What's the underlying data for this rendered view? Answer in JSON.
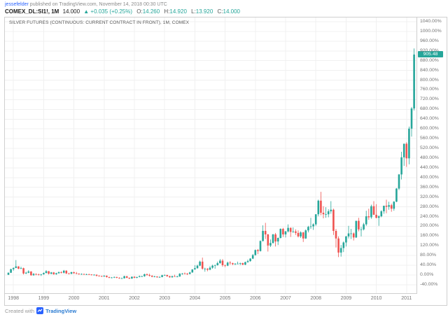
{
  "header": {
    "author": "jessefelder",
    "published": " published on TradingView.com, November 14, 2018 00:30 UTC",
    "symbol_line": {
      "symbol": "COMEX_DL:SI1!, 1M",
      "last": "14.000",
      "change": "▲ +0.035 (+0.25%)",
      "o_label": "O:",
      "o": "14.260",
      "h_label": "H:",
      "h": "14.920",
      "l_label": "L:",
      "l": "13.920",
      "c_label": "C:",
      "c": "14.000"
    }
  },
  "chart": {
    "title": "SILVER FUTURES (CONTINUOUS: CURRENT CONTRACT IN FRONT), 1M, COMEX",
    "price_tag": "905.48"
  },
  "footer": {
    "created_with": "Created with",
    "brand": "TradingView"
  },
  "chart_data": {
    "type": "candlestick",
    "symbol": "COMEX_DL:SI1!",
    "timeframe": "1M",
    "scale": "percent",
    "title": "SILVER FUTURES (CONTINUOUS: CURRENT CONTRACT IN FRONT), 1M, COMEX",
    "baseline_price": 4.835,
    "start": "1997-11",
    "y_axis": {
      "min_pct": -40,
      "max_pct": 1040,
      "step_pct": 40,
      "suffix": "%"
    },
    "x_ticks": [
      "1998",
      "1999",
      "2000",
      "2001",
      "2002",
      "2003",
      "2004",
      "2005",
      "2006",
      "2007",
      "2008",
      "2009",
      "2010",
      "2011"
    ],
    "colors": {
      "up": "#26a69a",
      "down": "#ef5350",
      "grid": "#f0f0f0"
    },
    "last_pct": 905.48,
    "candles_usd_ohlc": [
      [
        4.9,
        5.35,
        4.85,
        5.3
      ],
      [
        5.3,
        6.1,
        5.25,
        6.0
      ],
      [
        6.0,
        6.35,
        5.7,
        6.25
      ],
      [
        6.25,
        7.81,
        6.2,
        6.55
      ],
      [
        6.55,
        6.6,
        6.0,
        6.1
      ],
      [
        6.1,
        6.5,
        6.0,
        6.2
      ],
      [
        6.2,
        6.3,
        4.95,
        5.15
      ],
      [
        5.15,
        5.5,
        5.05,
        5.3
      ],
      [
        5.3,
        5.8,
        5.2,
        5.55
      ],
      [
        5.55,
        5.6,
        4.7,
        4.8
      ],
      [
        4.8,
        5.25,
        4.7,
        5.05
      ],
      [
        5.05,
        5.15,
        4.8,
        5.0
      ],
      [
        5.0,
        5.1,
        4.75,
        4.9
      ],
      [
        4.9,
        5.05,
        4.65,
        5.0
      ],
      [
        5.0,
        5.35,
        4.9,
        5.25
      ],
      [
        5.25,
        5.8,
        5.15,
        5.6
      ],
      [
        5.6,
        5.65,
        4.95,
        5.1
      ],
      [
        5.1,
        5.45,
        5.0,
        5.35
      ],
      [
        5.35,
        5.45,
        4.9,
        5.0
      ],
      [
        5.0,
        5.3,
        4.9,
        5.2
      ],
      [
        5.2,
        5.55,
        5.1,
        5.4
      ],
      [
        5.4,
        5.6,
        5.15,
        5.3
      ],
      [
        5.3,
        5.85,
        5.15,
        5.7
      ],
      [
        5.7,
        5.8,
        5.05,
        5.15
      ],
      [
        5.15,
        5.3,
        5.0,
        5.1
      ],
      [
        5.1,
        5.5,
        5.0,
        5.4
      ],
      [
        5.4,
        5.5,
        5.1,
        5.2
      ],
      [
        5.2,
        5.45,
        5.0,
        5.1
      ],
      [
        5.1,
        5.2,
        4.9,
        5.0
      ],
      [
        5.0,
        5.15,
        4.9,
        5.05
      ],
      [
        5.05,
        5.1,
        4.85,
        4.95
      ],
      [
        4.95,
        5.1,
        4.85,
        5.0
      ],
      [
        5.0,
        5.1,
        4.85,
        4.95
      ],
      [
        4.95,
        5.0,
        4.75,
        4.85
      ],
      [
        4.85,
        5.0,
        4.75,
        4.9
      ],
      [
        4.9,
        4.95,
        4.55,
        4.7
      ],
      [
        4.7,
        4.8,
        4.55,
        4.65
      ],
      [
        4.65,
        4.7,
        4.45,
        4.55
      ],
      [
        4.55,
        4.8,
        4.5,
        4.7
      ],
      [
        4.7,
        4.75,
        4.35,
        4.45
      ],
      [
        4.45,
        4.5,
        4.2,
        4.3
      ],
      [
        4.3,
        4.45,
        4.2,
        4.35
      ],
      [
        4.35,
        4.55,
        4.25,
        4.45
      ],
      [
        4.45,
        4.5,
        4.2,
        4.3
      ],
      [
        4.3,
        4.4,
        4.1,
        4.2
      ],
      [
        4.2,
        4.35,
        4.1,
        4.2
      ],
      [
        4.2,
        4.7,
        4.15,
        4.6
      ],
      [
        4.6,
        4.65,
        4.2,
        4.3
      ],
      [
        4.3,
        4.35,
        4.03,
        4.15
      ],
      [
        4.15,
        4.55,
        4.1,
        4.5
      ],
      [
        4.5,
        4.6,
        4.2,
        4.3
      ],
      [
        4.3,
        4.5,
        4.2,
        4.45
      ],
      [
        4.45,
        4.75,
        4.4,
        4.6
      ],
      [
        4.6,
        4.7,
        4.45,
        4.6
      ],
      [
        4.6,
        5.1,
        4.5,
        5.0
      ],
      [
        5.0,
        5.15,
        4.7,
        4.85
      ],
      [
        4.85,
        5.1,
        4.55,
        4.7
      ],
      [
        4.7,
        4.8,
        4.4,
        4.5
      ],
      [
        4.5,
        4.7,
        4.4,
        4.55
      ],
      [
        4.55,
        4.6,
        4.3,
        4.4
      ],
      [
        4.4,
        4.6,
        4.3,
        4.45
      ],
      [
        4.45,
        4.9,
        4.4,
        4.8
      ],
      [
        4.8,
        4.95,
        4.7,
        4.85
      ],
      [
        4.85,
        4.9,
        4.5,
        4.6
      ],
      [
        4.6,
        4.7,
        4.3,
        4.4
      ],
      [
        4.4,
        4.7,
        4.3,
        4.6
      ],
      [
        4.6,
        4.9,
        4.5,
        4.5
      ],
      [
        4.5,
        4.7,
        4.4,
        4.55
      ],
      [
        4.55,
        5.2,
        4.5,
        5.1
      ],
      [
        5.1,
        5.25,
        4.9,
        5.15
      ],
      [
        5.15,
        5.35,
        5.0,
        5.1
      ],
      [
        5.1,
        5.25,
        4.85,
        5.05
      ],
      [
        5.05,
        5.5,
        5.0,
        5.35
      ],
      [
        5.35,
        6.0,
        5.3,
        5.95
      ],
      [
        5.95,
        6.8,
        5.9,
        6.2
      ],
      [
        6.2,
        6.9,
        6.1,
        6.7
      ],
      [
        6.7,
        7.7,
        6.6,
        7.5
      ],
      [
        7.5,
        8.3,
        5.9,
        6.1
      ],
      [
        6.1,
        6.3,
        5.5,
        6.1
      ],
      [
        6.1,
        6.2,
        5.6,
        5.9
      ],
      [
        5.9,
        6.6,
        5.8,
        6.3
      ],
      [
        6.3,
        6.9,
        6.1,
        6.7
      ],
      [
        6.7,
        6.9,
        6.1,
        6.8
      ],
      [
        6.8,
        7.5,
        6.7,
        7.2
      ],
      [
        7.2,
        8.0,
        7.1,
        7.7
      ],
      [
        7.7,
        8.0,
        6.5,
        6.8
      ],
      [
        6.8,
        6.9,
        6.4,
        6.7
      ],
      [
        6.7,
        7.5,
        6.6,
        7.3
      ],
      [
        7.3,
        7.6,
        6.9,
        7.2
      ],
      [
        7.2,
        7.3,
        6.8,
        7.0
      ],
      [
        7.0,
        7.2,
        6.8,
        7.1
      ],
      [
        7.1,
        7.5,
        7.0,
        7.1
      ],
      [
        7.1,
        7.3,
        6.8,
        7.2
      ],
      [
        7.2,
        7.3,
        6.8,
        6.9
      ],
      [
        6.9,
        7.5,
        6.8,
        7.4
      ],
      [
        7.4,
        7.9,
        7.3,
        7.6
      ],
      [
        7.6,
        8.2,
        7.5,
        8.1
      ],
      [
        8.1,
        9.0,
        8.0,
        8.8
      ],
      [
        8.8,
        9.9,
        8.7,
        9.8
      ],
      [
        9.8,
        10.0,
        9.0,
        9.6
      ],
      [
        9.6,
        11.7,
        9.5,
        11.6
      ],
      [
        11.6,
        14.7,
        11.5,
        13.6
      ],
      [
        13.6,
        15.2,
        12.0,
        12.9
      ],
      [
        12.9,
        13.0,
        9.5,
        10.7
      ],
      [
        10.7,
        11.9,
        10.4,
        11.2
      ],
      [
        11.2,
        13.0,
        11.1,
        12.9
      ],
      [
        12.9,
        13.2,
        10.5,
        11.5
      ],
      [
        11.5,
        12.3,
        10.8,
        12.2
      ],
      [
        12.2,
        14.1,
        12.1,
        14.0
      ],
      [
        14.0,
        14.2,
        12.4,
        12.9
      ],
      [
        12.9,
        13.6,
        12.3,
        13.5
      ],
      [
        13.5,
        14.9,
        13.3,
        14.2
      ],
      [
        14.2,
        14.3,
        12.4,
        13.4
      ],
      [
        13.4,
        14.3,
        13.2,
        13.5
      ],
      [
        13.5,
        13.9,
        12.8,
        13.2
      ],
      [
        13.2,
        13.7,
        12.3,
        12.5
      ],
      [
        12.5,
        13.5,
        12.2,
        13.3
      ],
      [
        13.3,
        13.4,
        11.4,
        12.1
      ],
      [
        12.1,
        13.9,
        12.0,
        13.7
      ],
      [
        13.7,
        14.6,
        13.3,
        14.4
      ],
      [
        14.4,
        16.2,
        14.0,
        14.5
      ],
      [
        14.5,
        15.1,
        13.8,
        14.9
      ],
      [
        14.9,
        16.9,
        14.6,
        16.9
      ],
      [
        16.9,
        19.8,
        16.5,
        19.6
      ],
      [
        19.6,
        21.35,
        16.7,
        17.2
      ],
      [
        17.2,
        18.5,
        16.1,
        16.9
      ],
      [
        16.9,
        18.3,
        16.2,
        16.9
      ],
      [
        16.9,
        17.9,
        16.3,
        17.5
      ],
      [
        17.5,
        19.5,
        17.0,
        17.8
      ],
      [
        17.8,
        18.0,
        12.8,
        13.6
      ],
      [
        13.6,
        14.0,
        10.3,
        12.1
      ],
      [
        12.1,
        12.5,
        8.4,
        9.3
      ],
      [
        9.3,
        10.8,
        8.5,
        10.2
      ],
      [
        10.2,
        11.5,
        9.4,
        11.3
      ],
      [
        11.3,
        12.6,
        10.5,
        12.5
      ],
      [
        12.5,
        14.6,
        12.1,
        13.1
      ],
      [
        13.1,
        14.0,
        12.0,
        13.1
      ],
      [
        13.1,
        13.3,
        11.7,
        12.3
      ],
      [
        12.3,
        15.6,
        12.2,
        15.6
      ],
      [
        15.6,
        16.2,
        13.5,
        13.9
      ],
      [
        13.9,
        14.4,
        12.5,
        13.9
      ],
      [
        13.9,
        15.2,
        13.7,
        14.9
      ],
      [
        14.9,
        17.6,
        14.6,
        16.5
      ],
      [
        16.5,
        18.0,
        15.8,
        16.3
      ],
      [
        16.3,
        18.8,
        16.0,
        18.5
      ],
      [
        18.5,
        19.5,
        16.8,
        16.8
      ],
      [
        16.8,
        18.9,
        16.1,
        16.2
      ],
      [
        16.2,
        16.7,
        14.6,
        16.5
      ],
      [
        16.5,
        17.7,
        16.3,
        17.5
      ],
      [
        17.5,
        18.6,
        17.0,
        18.6
      ],
      [
        18.6,
        19.8,
        17.1,
        18.4
      ],
      [
        18.4,
        19.4,
        17.8,
        18.7
      ],
      [
        18.7,
        19.0,
        17.4,
        18.0
      ],
      [
        18.0,
        19.5,
        17.6,
        19.4
      ],
      [
        19.4,
        22.1,
        19.3,
        22.0
      ],
      [
        22.0,
        24.9,
        21.7,
        24.8
      ],
      [
        24.8,
        29.3,
        23.8,
        28.2
      ],
      [
        28.2,
        30.9,
        26.5,
        30.9
      ],
      [
        30.9,
        31.2,
        26.3,
        28.0
      ],
      [
        28.0,
        34.3,
        26.8,
        33.9
      ],
      [
        33.9,
        38.2,
        32.3,
        37.9
      ],
      [
        37.9,
        49.8,
        37.5,
        48.6
      ]
    ]
  }
}
